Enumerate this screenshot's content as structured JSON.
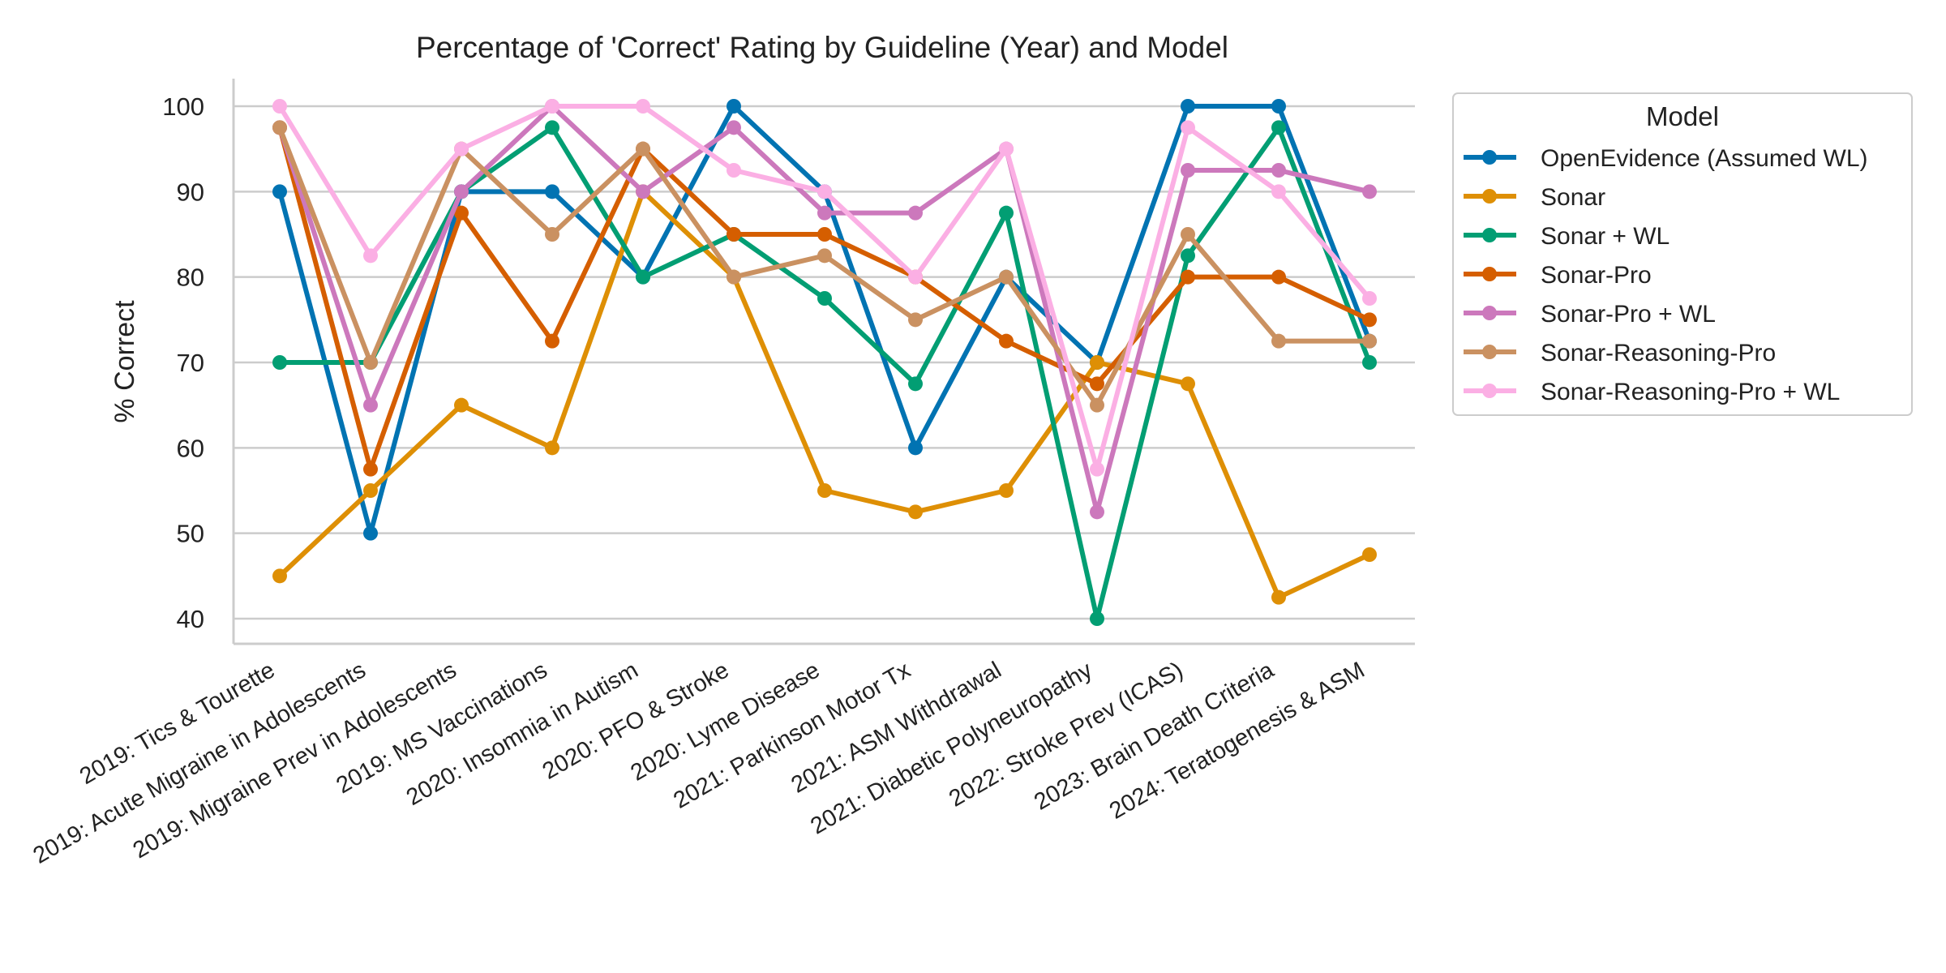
{
  "chart_data": {
    "type": "line",
    "title": "Percentage of 'Correct' Rating by Guideline (Year) and Model",
    "xlabel": "",
    "ylabel": "% Correct",
    "ylim": [
      37,
      103.5
    ],
    "yticks": [
      "40",
      "50",
      "60",
      "70",
      "80",
      "90",
      "100"
    ],
    "grid": "horizontal",
    "legend_title": "Model",
    "legend_position": "outside-right",
    "categories": [
      "2019: Tics & Tourette",
      "2019: Acute Migraine in Adolescents",
      "2019: Migraine Prev in Adolescents",
      "2019: MS Vaccinations",
      "2020: Insomnia in Autism",
      "2020: PFO & Stroke",
      "2020: Lyme Disease",
      "2021: Parkinson Motor Tx",
      "2021: ASM Withdrawal",
      "2021: Diabetic Polyneuropathy",
      "2022: Stroke Prev (ICAS)",
      "2023: Brain Death Criteria",
      "2024: Teratogenesis & ASM"
    ],
    "series": [
      {
        "name": "OpenEvidence (Assumed WL)",
        "color": "#0173b2",
        "values": [
          90,
          50,
          90,
          90,
          80,
          100,
          90,
          60,
          80,
          70,
          100,
          100,
          72.5
        ]
      },
      {
        "name": "Sonar",
        "color": "#de8f05",
        "values": [
          45,
          55,
          65,
          60,
          90,
          80,
          55,
          52.5,
          55,
          70,
          67.5,
          42.5,
          47.5
        ]
      },
      {
        "name": "Sonar + WL",
        "color": "#029e73",
        "values": [
          70,
          70,
          90,
          97.5,
          80,
          85,
          77.5,
          67.5,
          87.5,
          40,
          82.5,
          97.5,
          70
        ]
      },
      {
        "name": "Sonar-Pro",
        "color": "#d55e00",
        "values": [
          97.5,
          57.5,
          87.5,
          72.5,
          95,
          85,
          85,
          80,
          72.5,
          67.5,
          80,
          80,
          75
        ]
      },
      {
        "name": "Sonar-Pro + WL",
        "color": "#cc78bc",
        "values": [
          97.5,
          65,
          90,
          100,
          90,
          97.5,
          87.5,
          87.5,
          95,
          52.5,
          92.5,
          92.5,
          90
        ]
      },
      {
        "name": "Sonar-Reasoning-Pro",
        "color": "#ca9161",
        "values": [
          97.5,
          70,
          95,
          85,
          95,
          80,
          82.5,
          75,
          80,
          65,
          85,
          72.5,
          72.5
        ]
      },
      {
        "name": "Sonar-Reasoning-Pro + WL",
        "color": "#fbafe4",
        "values": [
          100,
          82.5,
          95,
          100,
          100,
          92.5,
          90,
          80,
          95,
          57.5,
          97.5,
          90,
          77.5
        ]
      }
    ]
  }
}
